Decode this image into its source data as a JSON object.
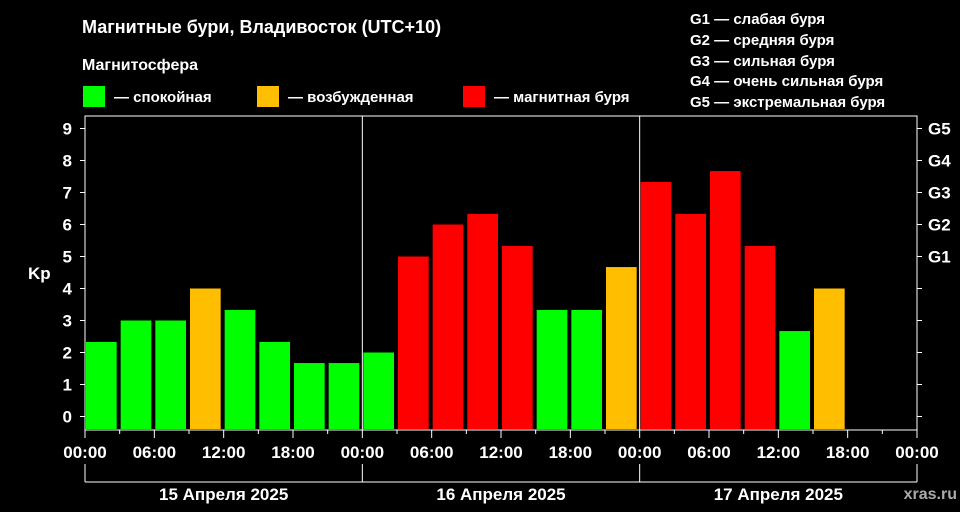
{
  "title": "Магнитные бури, Владивосток (UTC+10)",
  "legend": {
    "heading": "Магнитосфера",
    "items": [
      {
        "label": "— спокойная",
        "color": "#00ff00"
      },
      {
        "label": "— возбужденная",
        "color": "#ffbf00"
      },
      {
        "label": "— магнитная буря",
        "color": "#ff0000"
      }
    ]
  },
  "storm_scale": [
    "G1 — слабая буря",
    "G2 — средняя буря",
    "G3 — сильная буря",
    "G4 — очень сильная буря",
    "G5 — экстремальная буря"
  ],
  "watermark": "xras.ru",
  "chart_data": {
    "type": "bar",
    "ylabel": "Kp",
    "ylim": [
      0,
      9
    ],
    "yticks": [
      "0",
      "1",
      "2",
      "3",
      "4",
      "5",
      "6",
      "7",
      "8",
      "9"
    ],
    "right_ticks": [
      {
        "value": 5,
        "label": "G1"
      },
      {
        "value": 6,
        "label": "G2"
      },
      {
        "value": 7,
        "label": "G3"
      },
      {
        "value": 8,
        "label": "G4"
      },
      {
        "value": 9,
        "label": "G5"
      }
    ],
    "xticks": [
      "00:00",
      "06:00",
      "12:00",
      "18:00",
      "00:00",
      "06:00",
      "12:00",
      "18:00",
      "00:00",
      "06:00",
      "12:00",
      "18:00",
      "00:00"
    ],
    "days": [
      "15 Апреля 2025",
      "16 Апреля 2025",
      "17 Апреля 2025"
    ],
    "interval_hours": 3,
    "values": [
      2.33,
      3.0,
      3.0,
      4.0,
      3.33,
      2.33,
      1.67,
      1.67,
      2.0,
      5.0,
      6.0,
      6.33,
      5.33,
      3.33,
      3.33,
      4.67,
      7.33,
      6.33,
      7.67,
      5.33,
      2.67,
      4.0
    ],
    "levels": [
      "quiet",
      "quiet",
      "quiet",
      "active",
      "quiet",
      "quiet",
      "quiet",
      "quiet",
      "quiet",
      "storm",
      "storm",
      "storm",
      "storm",
      "quiet",
      "quiet",
      "active",
      "storm",
      "storm",
      "storm",
      "storm",
      "quiet",
      "active"
    ],
    "colors": {
      "quiet": "#00ff00",
      "active": "#ffbf00",
      "storm": "#ff0000"
    },
    "grid": false
  }
}
